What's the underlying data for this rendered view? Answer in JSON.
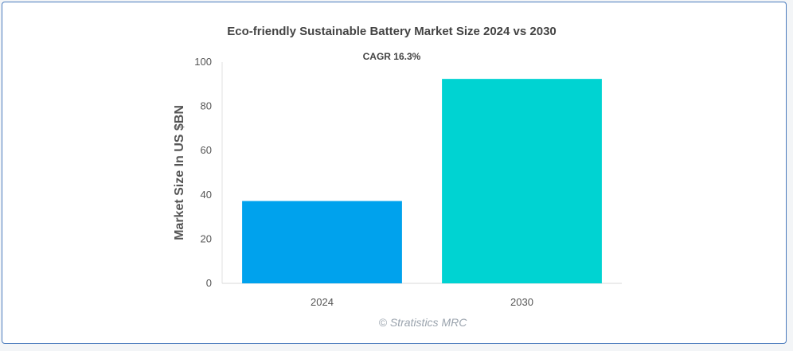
{
  "chart_data": {
    "type": "bar",
    "title": "Eco-friendly Sustainable Battery Market Size 2024 vs 2030",
    "subtitle": "CAGR 16.3%",
    "xlabel": "",
    "ylabel": "Market Size In US $BN",
    "categories": [
      "2024",
      "2030"
    ],
    "values": [
      37.2,
      92.4
    ],
    "ylim": [
      0,
      100
    ],
    "yticks": [
      0,
      20,
      40,
      60,
      80,
      100
    ],
    "grid": false,
    "colors": [
      "#00a2ed",
      "#00d3d2"
    ]
  },
  "credit": "© Stratistics MRC"
}
